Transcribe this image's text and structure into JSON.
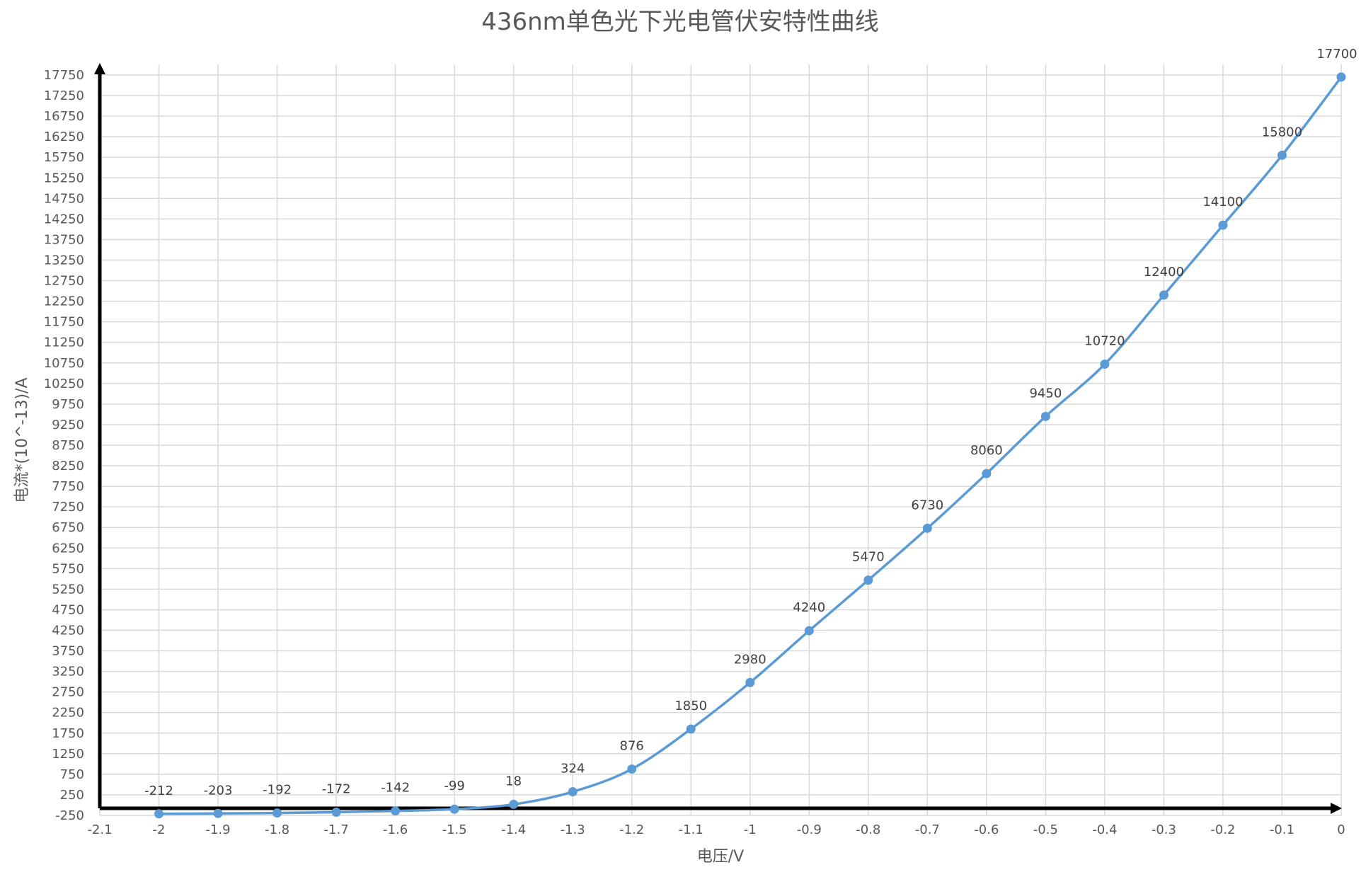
{
  "chart_data": {
    "type": "line",
    "title": "436nm单色光下光电管伏安特性曲线",
    "xlabel": "电压/V",
    "ylabel": "电流*(10^-13)/A",
    "xlim": [
      -2.1,
      0
    ],
    "ylim": [
      -250,
      17750
    ],
    "x_ticks": [
      "-2.1",
      "-2",
      "-1.9",
      "-1.8",
      "-1.7",
      "-1.6",
      "-1.5",
      "-1.4",
      "-1.3",
      "-1.2",
      "-1.1",
      "-1",
      "-0.9",
      "-0.8",
      "-0.7",
      "-0.6",
      "-0.5",
      "-0.4",
      "-0.3",
      "-0.2",
      "-0.1",
      "0"
    ],
    "y_ticks": [
      "-250",
      "250",
      "750",
      "1250",
      "1750",
      "2250",
      "2750",
      "3250",
      "3750",
      "4250",
      "4750",
      "5250",
      "5750",
      "6250",
      "6750",
      "7250",
      "7750",
      "8250",
      "8750",
      "9250",
      "9750",
      "10250",
      "10750",
      "11250",
      "11750",
      "12250",
      "12750",
      "13250",
      "13750",
      "14250",
      "14750",
      "15250",
      "15750",
      "16250",
      "16750",
      "17250",
      "17750"
    ],
    "grid": true,
    "series": [
      {
        "x": [
          -2,
          -1.9,
          -1.8,
          -1.7,
          -1.6,
          -1.5,
          -1.4,
          -1.3,
          -1.2,
          -1.1,
          -1,
          -0.9,
          -0.8,
          -0.7,
          -0.6,
          -0.5,
          -0.4,
          -0.3,
          -0.2,
          -0.1,
          0
        ],
        "y": [
          -212,
          -203,
          -192,
          -172,
          -142,
          -99,
          18,
          324,
          876,
          1850,
          2980,
          4240,
          5470,
          6730,
          8060,
          9450,
          10720,
          12400,
          14100,
          15800,
          17700
        ],
        "labels": [
          "-212",
          "-203",
          "-192",
          "-172",
          "-142",
          "-99",
          "18",
          "324",
          "876",
          "1850",
          "2980",
          "4240",
          "5470",
          "6730",
          "8060",
          "9450",
          "10720",
          "12400",
          "14100",
          "15800",
          "17700"
        ],
        "color": "#5b9bd5"
      }
    ]
  }
}
